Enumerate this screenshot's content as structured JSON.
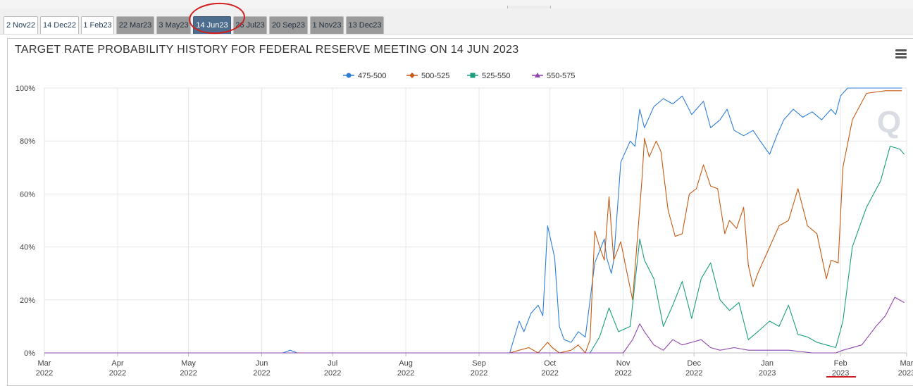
{
  "tabs": [
    {
      "label": "2 Nov22",
      "state": "past"
    },
    {
      "label": "14 Dec22",
      "state": "past"
    },
    {
      "label": "1 Feb23",
      "state": "past"
    },
    {
      "label": "22 Mar23",
      "state": "future"
    },
    {
      "label": "3 May23",
      "state": "future"
    },
    {
      "label": "14 Jun23",
      "state": "active"
    },
    {
      "label": "26 Jul23",
      "state": "future"
    },
    {
      "label": "20 Sep23",
      "state": "future"
    },
    {
      "label": "1 Nov23",
      "state": "future"
    },
    {
      "label": "13 Dec23",
      "state": "future"
    }
  ],
  "watermark": "Q",
  "menu_icon": "hamburger-menu-icon",
  "annotations": {
    "color": "#d11f1f"
  },
  "chart_data": {
    "type": "line",
    "title": "TARGET RATE PROBABILITY HISTORY FOR FEDERAL RESERVE MEETING ON 14 JUN 2023",
    "legend_position": "top-center",
    "grid": true,
    "ylim": [
      0,
      100
    ],
    "y_ticks": [
      "0%",
      "20%",
      "40%",
      "60%",
      "80%",
      "100%"
    ],
    "x_ticks": [
      {
        "month": "Mar",
        "year": "2022"
      },
      {
        "month": "Apr",
        "year": "2022"
      },
      {
        "month": "May",
        "year": "2022"
      },
      {
        "month": "Jun",
        "year": "2022"
      },
      {
        "month": "Jul",
        "year": "2022"
      },
      {
        "month": "Aug",
        "year": "2022"
      },
      {
        "month": "Sep",
        "year": "2022"
      },
      {
        "month": "Oct",
        "year": "2022"
      },
      {
        "month": "Nov",
        "year": "2022"
      },
      {
        "month": "Dec",
        "year": "2022"
      },
      {
        "month": "Jan",
        "year": "2023"
      },
      {
        "month": "Feb",
        "year": "2023"
      },
      {
        "month": "Mar",
        "year": "2023"
      }
    ],
    "xlim": [
      "2022-03-01",
      "2023-03-01"
    ],
    "series": [
      {
        "name": "475-500",
        "color": "#2f7ed8",
        "marker": "circle",
        "points": [
          [
            "2022-03-01",
            0
          ],
          [
            "2022-06-10",
            0
          ],
          [
            "2022-06-13",
            1
          ],
          [
            "2022-06-16",
            0
          ],
          [
            "2022-09-14",
            0
          ],
          [
            "2022-09-16",
            6
          ],
          [
            "2022-09-18",
            12
          ],
          [
            "2022-09-20",
            8
          ],
          [
            "2022-09-23",
            15
          ],
          [
            "2022-09-26",
            18
          ],
          [
            "2022-09-28",
            14
          ],
          [
            "2022-09-30",
            48
          ],
          [
            "2022-10-03",
            36
          ],
          [
            "2022-10-05",
            10
          ],
          [
            "2022-10-07",
            5
          ],
          [
            "2022-10-10",
            4
          ],
          [
            "2022-10-13",
            8
          ],
          [
            "2022-10-16",
            6
          ],
          [
            "2022-10-18",
            20
          ],
          [
            "2022-10-20",
            34
          ],
          [
            "2022-10-24",
            43
          ],
          [
            "2022-10-25",
            36
          ],
          [
            "2022-10-27",
            30
          ],
          [
            "2022-10-28",
            35
          ],
          [
            "2022-10-31",
            72
          ],
          [
            "2022-11-02",
            76
          ],
          [
            "2022-11-04",
            80
          ],
          [
            "2022-11-06",
            78
          ],
          [
            "2022-11-08",
            92
          ],
          [
            "2022-11-10",
            85
          ],
          [
            "2022-11-14",
            93
          ],
          [
            "2022-11-18",
            96
          ],
          [
            "2022-11-22",
            94
          ],
          [
            "2022-11-26",
            97
          ],
          [
            "2022-11-30",
            90
          ],
          [
            "2022-12-05",
            95
          ],
          [
            "2022-12-08",
            85
          ],
          [
            "2022-12-12",
            88
          ],
          [
            "2022-12-15",
            92
          ],
          [
            "2022-12-18",
            84
          ],
          [
            "2022-12-22",
            82
          ],
          [
            "2022-12-26",
            84
          ],
          [
            "2022-12-29",
            80
          ],
          [
            "2023-01-02",
            75
          ],
          [
            "2023-01-05",
            82
          ],
          [
            "2023-01-08",
            88
          ],
          [
            "2023-01-12",
            92
          ],
          [
            "2023-01-16",
            89
          ],
          [
            "2023-01-20",
            91
          ],
          [
            "2023-01-24",
            88
          ],
          [
            "2023-01-28",
            92
          ],
          [
            "2023-01-30",
            90
          ],
          [
            "2023-02-01",
            97
          ],
          [
            "2023-02-04",
            100
          ],
          [
            "2023-02-20",
            100
          ],
          [
            "2023-02-27",
            100
          ]
        ]
      },
      {
        "name": "500-525",
        "color": "#c55a11",
        "marker": "diamond",
        "points": [
          [
            "2022-03-01",
            0
          ],
          [
            "2022-09-14",
            0
          ],
          [
            "2022-09-18",
            1
          ],
          [
            "2022-09-22",
            2
          ],
          [
            "2022-09-26",
            0
          ],
          [
            "2022-09-30",
            4
          ],
          [
            "2022-10-02",
            2
          ],
          [
            "2022-10-05",
            0
          ],
          [
            "2022-10-10",
            1
          ],
          [
            "2022-10-13",
            3
          ],
          [
            "2022-10-16",
            0
          ],
          [
            "2022-10-18",
            5
          ],
          [
            "2022-10-20",
            46
          ],
          [
            "2022-10-22",
            40
          ],
          [
            "2022-10-24",
            35
          ],
          [
            "2022-10-26",
            59
          ],
          [
            "2022-10-28",
            35
          ],
          [
            "2022-10-31",
            42
          ],
          [
            "2022-11-02",
            33
          ],
          [
            "2022-11-05",
            20
          ],
          [
            "2022-11-07",
            43
          ],
          [
            "2022-11-09",
            66
          ],
          [
            "2022-11-10",
            81
          ],
          [
            "2022-11-12",
            74
          ],
          [
            "2022-11-15",
            80
          ],
          [
            "2022-11-17",
            76
          ],
          [
            "2022-11-20",
            54
          ],
          [
            "2022-11-23",
            44
          ],
          [
            "2022-11-26",
            45
          ],
          [
            "2022-11-29",
            60
          ],
          [
            "2022-12-02",
            62
          ],
          [
            "2022-12-05",
            71
          ],
          [
            "2022-12-08",
            63
          ],
          [
            "2022-12-11",
            62
          ],
          [
            "2022-12-14",
            45
          ],
          [
            "2022-12-16",
            50
          ],
          [
            "2022-12-19",
            47
          ],
          [
            "2022-12-22",
            55
          ],
          [
            "2022-12-24",
            33
          ],
          [
            "2022-12-26",
            25
          ],
          [
            "2022-12-28",
            30
          ],
          [
            "2023-01-02",
            40
          ],
          [
            "2023-01-06",
            48
          ],
          [
            "2023-01-10",
            50
          ],
          [
            "2023-01-14",
            62
          ],
          [
            "2023-01-18",
            48
          ],
          [
            "2023-01-22",
            45
          ],
          [
            "2023-01-26",
            28
          ],
          [
            "2023-01-28",
            35
          ],
          [
            "2023-01-31",
            34
          ],
          [
            "2023-02-02",
            70
          ],
          [
            "2023-02-06",
            88
          ],
          [
            "2023-02-12",
            98
          ],
          [
            "2023-02-20",
            99
          ],
          [
            "2023-02-27",
            99
          ]
        ]
      },
      {
        "name": "525-550",
        "color": "#1a9e7e",
        "marker": "square",
        "points": [
          [
            "2022-03-01",
            0
          ],
          [
            "2022-10-18",
            0
          ],
          [
            "2022-10-22",
            6
          ],
          [
            "2022-10-26",
            17
          ],
          [
            "2022-10-30",
            8
          ],
          [
            "2022-11-04",
            10
          ],
          [
            "2022-11-08",
            43
          ],
          [
            "2022-11-10",
            35
          ],
          [
            "2022-11-14",
            28
          ],
          [
            "2022-11-18",
            10
          ],
          [
            "2022-11-22",
            18
          ],
          [
            "2022-11-26",
            27
          ],
          [
            "2022-11-30",
            13
          ],
          [
            "2022-12-04",
            28
          ],
          [
            "2022-12-08",
            34
          ],
          [
            "2022-12-12",
            20
          ],
          [
            "2022-12-16",
            16
          ],
          [
            "2022-12-20",
            19
          ],
          [
            "2022-12-24",
            5
          ],
          [
            "2022-12-28",
            8
          ],
          [
            "2023-01-02",
            12
          ],
          [
            "2023-01-06",
            10
          ],
          [
            "2023-01-10",
            18
          ],
          [
            "2023-01-14",
            7
          ],
          [
            "2023-01-18",
            6
          ],
          [
            "2023-01-22",
            4
          ],
          [
            "2023-01-26",
            3
          ],
          [
            "2023-01-30",
            2
          ],
          [
            "2023-02-02",
            12
          ],
          [
            "2023-02-06",
            40
          ],
          [
            "2023-02-12",
            55
          ],
          [
            "2023-02-18",
            65
          ],
          [
            "2023-02-22",
            78
          ],
          [
            "2023-02-26",
            77
          ],
          [
            "2023-02-28",
            75
          ]
        ]
      },
      {
        "name": "550-575",
        "color": "#8e44ad",
        "marker": "triangle",
        "points": [
          [
            "2022-03-01",
            0
          ],
          [
            "2022-11-01",
            0
          ],
          [
            "2022-11-05",
            5
          ],
          [
            "2022-11-08",
            11
          ],
          [
            "2022-11-10",
            8
          ],
          [
            "2022-11-14",
            3
          ],
          [
            "2022-11-18",
            1
          ],
          [
            "2022-11-22",
            5
          ],
          [
            "2022-11-26",
            3
          ],
          [
            "2022-11-30",
            4
          ],
          [
            "2022-12-04",
            5
          ],
          [
            "2022-12-08",
            2
          ],
          [
            "2022-12-12",
            1
          ],
          [
            "2022-12-18",
            2
          ],
          [
            "2022-12-24",
            1
          ],
          [
            "2023-01-02",
            1
          ],
          [
            "2023-01-10",
            1
          ],
          [
            "2023-01-20",
            0
          ],
          [
            "2023-01-30",
            0
          ],
          [
            "2023-02-02",
            1
          ],
          [
            "2023-02-10",
            3
          ],
          [
            "2023-02-16",
            10
          ],
          [
            "2023-02-20",
            14
          ],
          [
            "2023-02-24",
            21
          ],
          [
            "2023-02-28",
            19
          ]
        ]
      }
    ]
  }
}
